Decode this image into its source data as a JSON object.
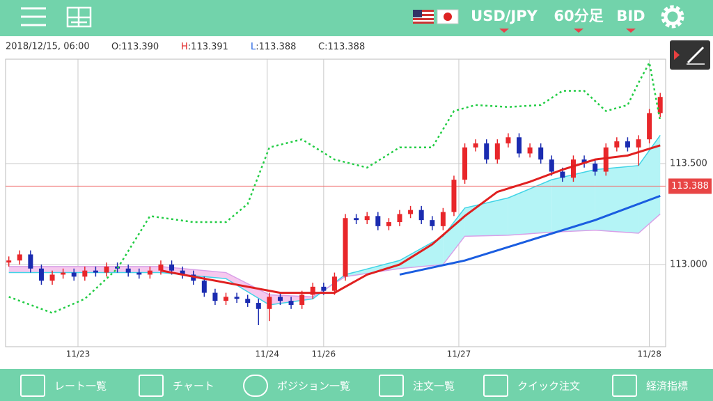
{
  "header": {
    "pair": "USD/JPY",
    "timeframe": "60分足",
    "side": "BID"
  },
  "info": {
    "datetime": "2018/12/15, 06:00",
    "ohlc": [
      {
        "key": "O",
        "value": "113.390"
      },
      {
        "key": "H",
        "value": "113.391"
      },
      {
        "key": "L",
        "value": "113.388"
      },
      {
        "key": "C",
        "value": "113.388"
      }
    ]
  },
  "chart_data": {
    "type": "candlestick",
    "xlim": [
      -0.3,
      60.5
    ],
    "xticks": [
      {
        "value": 6.37,
        "label": "11/23"
      },
      {
        "value": 23.8,
        "label": "11/24"
      },
      {
        "value": 29,
        "label": "11/26"
      },
      {
        "value": 41.45,
        "label": "11/27"
      },
      {
        "value": 59,
        "label": "11/28"
      }
    ],
    "ylim": [
      112.593,
      114.017
    ],
    "yticks": [
      {
        "value": 113,
        "label": "113.000"
      },
      {
        "value": 113.5,
        "label": "113.500"
      }
    ],
    "grid": true,
    "current_price": 113.388,
    "up_color": "#e8262a",
    "down_color": "#1a2bb0",
    "candles": {
      "open": [
        113.01,
        113.02,
        113.05,
        112.98,
        112.92,
        112.95,
        112.96,
        112.94,
        112.97,
        112.96,
        112.99,
        112.98,
        112.96,
        112.95,
        112.97,
        113.0,
        112.97,
        112.95,
        112.92,
        112.86,
        112.82,
        112.84,
        112.83,
        112.81,
        112.78,
        112.84,
        112.82,
        112.8,
        112.85,
        112.89,
        112.87,
        112.94,
        113.23,
        113.22,
        113.24,
        113.19,
        113.21,
        113.25,
        113.27,
        113.22,
        113.19,
        113.26,
        113.42,
        113.58,
        113.6,
        113.52,
        113.6,
        113.63,
        113.55,
        113.58,
        113.52,
        113.46,
        113.43,
        113.52,
        113.5,
        113.46,
        113.58,
        113.61,
        113.58,
        113.62,
        113.75
      ],
      "high": [
        113.04,
        113.07,
        113.07,
        113.0,
        112.97,
        112.98,
        112.98,
        112.99,
        112.99,
        113.01,
        113.01,
        113.0,
        112.98,
        112.99,
        113.02,
        113.02,
        112.99,
        112.97,
        112.94,
        112.88,
        112.86,
        112.86,
        112.85,
        112.83,
        112.86,
        112.86,
        112.84,
        112.87,
        112.91,
        112.91,
        112.96,
        113.25,
        113.25,
        113.26,
        113.26,
        113.23,
        113.27,
        113.29,
        113.29,
        113.24,
        113.28,
        113.44,
        113.6,
        113.62,
        113.62,
        113.62,
        113.65,
        113.65,
        113.6,
        113.6,
        113.54,
        113.48,
        113.54,
        113.54,
        113.52,
        113.6,
        113.63,
        113.63,
        113.64,
        113.77,
        113.85
      ],
      "low": [
        112.99,
        113.0,
        112.96,
        112.9,
        112.9,
        112.93,
        112.92,
        112.92,
        112.94,
        112.94,
        112.96,
        112.94,
        112.93,
        112.93,
        112.95,
        112.95,
        112.93,
        112.9,
        112.84,
        112.8,
        112.8,
        112.81,
        112.79,
        112.7,
        112.72,
        112.8,
        112.78,
        112.78,
        112.83,
        112.85,
        112.85,
        112.92,
        113.2,
        113.2,
        113.17,
        113.17,
        113.19,
        113.23,
        113.2,
        113.17,
        113.17,
        113.24,
        113.4,
        113.56,
        113.5,
        113.5,
        113.58,
        113.53,
        113.53,
        113.5,
        113.44,
        113.41,
        113.41,
        113.48,
        113.44,
        113.44,
        113.56,
        113.56,
        113.49,
        113.6,
        113.73
      ],
      "close": [
        113.02,
        113.05,
        112.98,
        112.92,
        112.95,
        112.96,
        112.94,
        112.97,
        112.96,
        112.99,
        112.98,
        112.96,
        112.95,
        112.97,
        113.0,
        112.97,
        112.95,
        112.92,
        112.86,
        112.82,
        112.84,
        112.83,
        112.81,
        112.78,
        112.84,
        112.82,
        112.8,
        112.85,
        112.89,
        112.87,
        112.94,
        113.23,
        113.22,
        113.24,
        113.19,
        113.21,
        113.25,
        113.27,
        113.22,
        113.19,
        113.26,
        113.42,
        113.58,
        113.6,
        113.52,
        113.6,
        113.63,
        113.55,
        113.58,
        113.52,
        113.46,
        113.43,
        113.52,
        113.5,
        113.46,
        113.58,
        113.61,
        113.58,
        113.62,
        113.75,
        113.83
      ]
    },
    "cloud": {
      "x": [
        0,
        14,
        20,
        24,
        28,
        31,
        36,
        40,
        42,
        46,
        50,
        54,
        58,
        60
      ],
      "span_a": [
        112.96,
        112.96,
        112.93,
        112.8,
        112.83,
        112.95,
        113.02,
        113.14,
        113.28,
        113.33,
        113.42,
        113.47,
        113.49,
        113.64
      ],
      "span_b": [
        112.99,
        112.99,
        112.96,
        112.85,
        112.84,
        112.94,
        112.98,
        113.0,
        113.14,
        113.145,
        113.16,
        113.17,
        113.155,
        113.25
      ],
      "up_fill": "#b4f4f6",
      "up_edge": "#40d4e6",
      "down_fill": "#f6c8ee",
      "down_edge": "#d8a0e8"
    },
    "series": [
      {
        "color": "#22cc44",
        "dashed": true,
        "x": [
          0,
          4,
          7,
          10,
          13,
          17,
          20,
          22,
          24,
          27,
          30,
          33,
          36,
          39,
          41,
          43,
          46,
          49,
          51,
          53,
          55,
          57,
          58,
          59,
          60
        ],
        "values": [
          112.84,
          112.76,
          112.83,
          112.98,
          113.24,
          113.21,
          113.21,
          113.3,
          113.58,
          113.62,
          113.52,
          113.48,
          113.58,
          113.58,
          113.76,
          113.79,
          113.78,
          113.79,
          113.86,
          113.86,
          113.76,
          113.79,
          113.9,
          114.0,
          113.71
        ]
      },
      {
        "color": "#e02020",
        "dashed": false,
        "x": [
          14,
          20,
          25,
          30,
          33,
          36,
          39,
          42,
          45,
          48,
          51,
          54,
          57,
          60
        ],
        "values": [
          112.97,
          112.91,
          112.86,
          112.86,
          112.95,
          113.0,
          113.1,
          113.24,
          113.36,
          113.41,
          113.47,
          113.52,
          113.54,
          113.59
        ]
      },
      {
        "color": "#1a5de0",
        "dashed": false,
        "x": [
          36,
          42,
          48,
          54,
          60
        ],
        "values": [
          112.95,
          113.02,
          113.12,
          113.22,
          113.34
        ]
      }
    ]
  },
  "tabs": [
    "レート一覧",
    "チャート",
    "ポジション一覧",
    "注文一覧",
    "クイック注文",
    "経済指標"
  ]
}
